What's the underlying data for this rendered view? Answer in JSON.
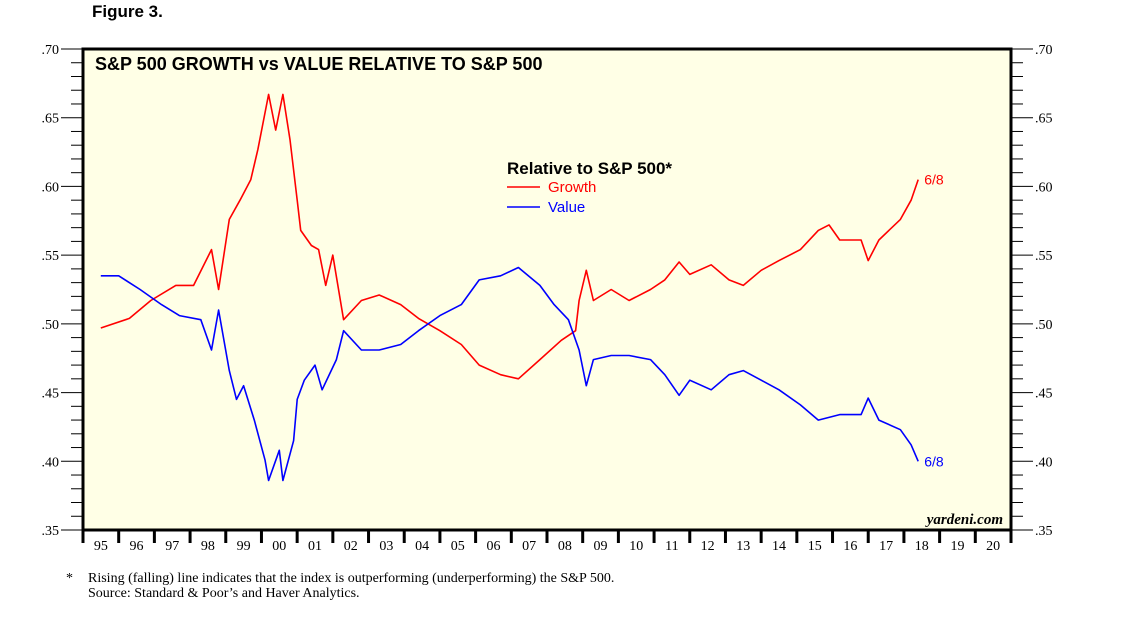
{
  "figure_label": "Figure 3.",
  "footnote": "Rising (falling) line indicates that the index is outperforming (underperforming) the S&P 500.",
  "footnote_marker": "*",
  "source": "Source: Standard & Poor’s and Haver Analytics.",
  "chart_data": {
    "type": "line",
    "title": "S&P 500 GROWTH vs VALUE RELATIVE TO S&P 500",
    "legend_title": "Relative to S&P 500*",
    "legend_placement": "top-center",
    "watermark": "yardeni.com",
    "background_color": "#ffffe6",
    "xlim": [
      1995,
      2021
    ],
    "ylim": [
      0.35,
      0.7
    ],
    "x_tick_labels": [
      "95",
      "96",
      "97",
      "98",
      "99",
      "00",
      "01",
      "02",
      "03",
      "04",
      "05",
      "06",
      "07",
      "08",
      "09",
      "10",
      "11",
      "12",
      "13",
      "14",
      "15",
      "16",
      "17",
      "18",
      "19",
      "20"
    ],
    "y_tick_labels": [
      ".35",
      ".40",
      ".45",
      ".50",
      ".55",
      ".60",
      ".65",
      ".70"
    ],
    "y_ticks": [
      0.35,
      0.4,
      0.45,
      0.5,
      0.55,
      0.6,
      0.65,
      0.7
    ],
    "grid": false,
    "series": [
      {
        "name": "Growth",
        "color": "#ff0000",
        "end_label": "6/8",
        "x": [
          1995.5,
          1996.3,
          1996.9,
          1997.6,
          1998.1,
          1998.6,
          1998.8,
          1999.1,
          1999.4,
          1999.7,
          1999.9,
          2000.2,
          2000.4,
          2000.6,
          2000.8,
          2001.0,
          2001.1,
          2001.4,
          2001.6,
          2001.8,
          2002.0,
          2002.3,
          2002.8,
          2003.3,
          2003.9,
          2004.4,
          2005.0,
          2005.6,
          2006.1,
          2006.7,
          2007.2,
          2007.8,
          2008.4,
          2008.8,
          2008.9,
          2009.1,
          2009.3,
          2009.8,
          2010.3,
          2010.9,
          2011.3,
          2011.7,
          2012.0,
          2012.6,
          2013.1,
          2013.5,
          2014.0,
          2014.5,
          2015.1,
          2015.6,
          2015.9,
          2016.2,
          2016.8,
          2017.0,
          2017.3,
          2017.9,
          2018.2,
          2018.4
        ],
        "y": [
          0.497,
          0.504,
          0.517,
          0.528,
          0.528,
          0.554,
          0.525,
          0.576,
          0.59,
          0.605,
          0.627,
          0.667,
          0.641,
          0.667,
          0.634,
          0.59,
          0.568,
          0.557,
          0.554,
          0.528,
          0.55,
          0.503,
          0.517,
          0.521,
          0.514,
          0.504,
          0.495,
          0.485,
          0.47,
          0.463,
          0.46,
          0.474,
          0.488,
          0.495,
          0.517,
          0.539,
          0.517,
          0.525,
          0.517,
          0.525,
          0.532,
          0.545,
          0.536,
          0.543,
          0.532,
          0.528,
          0.539,
          0.546,
          0.554,
          0.568,
          0.572,
          0.561,
          0.561,
          0.546,
          0.561,
          0.576,
          0.59,
          0.605
        ]
      },
      {
        "name": "Value",
        "color": "#0000ff",
        "end_label": "6/8",
        "x": [
          1995.5,
          1996.0,
          1996.6,
          1997.2,
          1997.7,
          1998.3,
          1998.6,
          1998.8,
          1999.1,
          1999.3,
          1999.5,
          1999.8,
          2000.1,
          2000.2,
          2000.5,
          2000.6,
          2000.9,
          2001.0,
          2001.2,
          2001.5,
          2001.7,
          2002.1,
          2002.3,
          2002.8,
          2003.3,
          2003.9,
          2004.4,
          2005.0,
          2005.6,
          2006.1,
          2006.7,
          2007.2,
          2007.8,
          2008.2,
          2008.6,
          2008.9,
          2009.1,
          2009.3,
          2009.8,
          2010.3,
          2010.9,
          2011.3,
          2011.7,
          2012.0,
          2012.6,
          2013.1,
          2013.5,
          2014.0,
          2014.5,
          2015.1,
          2015.6,
          2016.2,
          2016.8,
          2017.0,
          2017.3,
          2017.9,
          2018.2,
          2018.4
        ],
        "y": [
          0.535,
          0.535,
          0.525,
          0.514,
          0.506,
          0.503,
          0.481,
          0.51,
          0.466,
          0.445,
          0.455,
          0.43,
          0.401,
          0.386,
          0.408,
          0.386,
          0.415,
          0.445,
          0.459,
          0.47,
          0.452,
          0.474,
          0.495,
          0.481,
          0.481,
          0.485,
          0.495,
          0.506,
          0.514,
          0.532,
          0.535,
          0.541,
          0.528,
          0.514,
          0.503,
          0.481,
          0.455,
          0.474,
          0.477,
          0.477,
          0.474,
          0.463,
          0.448,
          0.459,
          0.452,
          0.463,
          0.466,
          0.459,
          0.452,
          0.441,
          0.43,
          0.434,
          0.434,
          0.446,
          0.43,
          0.423,
          0.412,
          0.4
        ]
      }
    ]
  }
}
